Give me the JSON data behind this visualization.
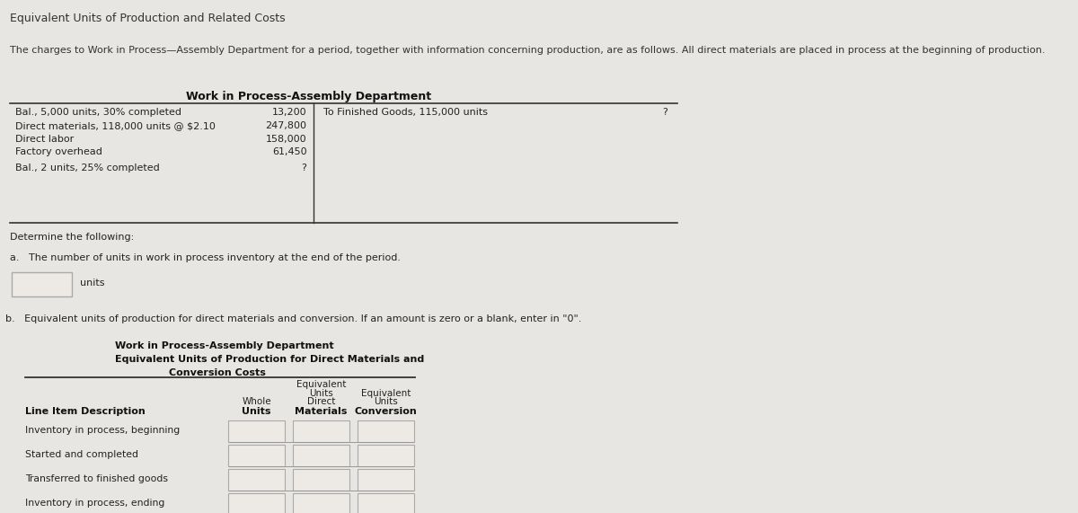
{
  "bg_color": "#e8e6e2",
  "title": "Equivalent Units of Production and Related Costs",
  "intro_text": "The charges to Work in Process—Assembly Department for a period, together with information concerning production, are as follows. All direct materials are placed in process at the beginning of production.",
  "wip_title": "Work in Process-Assembly Department",
  "left_entries": [
    [
      "Bal., 5,000 units, 30% completed",
      "13,200"
    ],
    [
      "Direct materials, 118,000 units @ $2.10",
      "247,800"
    ],
    [
      "Direct labor",
      "158,000"
    ],
    [
      "Factory overhead",
      "61,450"
    ],
    [
      "Bal., 2 units, 25% completed",
      "?"
    ]
  ],
  "right_label": "To Finished Goods, 115,000 units",
  "right_val": "?",
  "determine_text": "Determine the following:",
  "part_a_text": "a.   The number of units in work in process inventory at the end of the period.",
  "part_b_text": "b.  Equivalent units of production for direct materials and conversion. If an amount is zero or a blank, enter in \"0\".",
  "sub_title1": "Work in Process-Assembly Department",
  "sub_title2": "Equivalent Units of Production for Direct Materials and",
  "sub_title3": "Conversion Costs",
  "row_labels": [
    "Inventory in process, beginning",
    "Started and completed",
    "Transferred to finished goods",
    "Inventory in process, ending"
  ]
}
